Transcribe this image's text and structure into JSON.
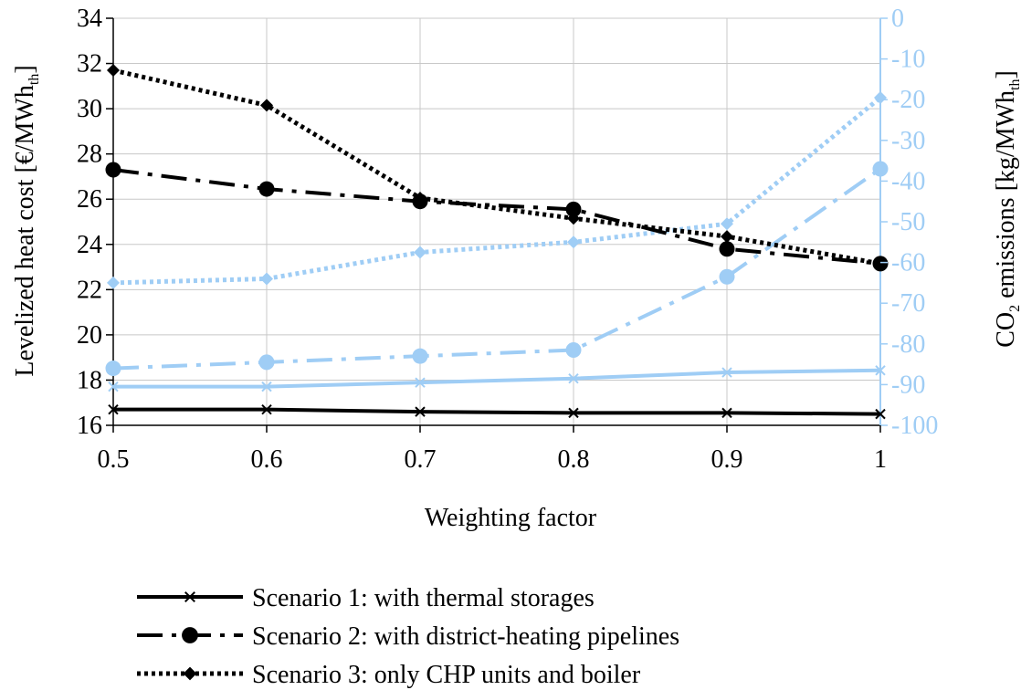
{
  "chart_data": {
    "type": "line",
    "x": [
      0.5,
      0.6,
      0.7,
      0.8,
      0.9,
      1
    ],
    "x_tick_labels": [
      "0.5",
      "0.6",
      "0.7",
      "0.8",
      "0.9",
      "1"
    ],
    "xlabel": "Weighting factor",
    "xlim": [
      0.5,
      1
    ],
    "ylabel_left": {
      "main": "Levelized heat cost [€/MWh",
      "sub": "th",
      "end": "]"
    },
    "ylim_left": [
      16,
      34
    ],
    "y_left_ticks": [
      "16",
      "18",
      "20",
      "22",
      "24",
      "26",
      "28",
      "30",
      "32",
      "34"
    ],
    "ylabel_right": {
      "pre": "CO",
      "sub1": "2",
      "mid": " emissions [kg/MWh",
      "sub2": "th",
      "end": "]"
    },
    "ylim_right": [
      -100,
      0
    ],
    "y_right_ticks": [
      "0",
      "-10",
      "-20",
      "-30",
      "-40",
      "-50",
      "-60",
      "-70",
      "-80",
      "-90",
      "-100"
    ],
    "grid": true,
    "legend_position": "bottom",
    "colors": {
      "cost": "#000000",
      "emissions": "#9fcdf5",
      "grid": "#c8c8c8"
    },
    "series": [
      {
        "name": "Scenario 1: with thermal storages",
        "axis": "left",
        "metric": "cost",
        "marker": "x",
        "dash": "solid",
        "values": [
          16.7,
          16.7,
          16.6,
          16.55,
          16.55,
          16.5
        ]
      },
      {
        "name": "Scenario 2: with district-heating pipelines",
        "axis": "left",
        "metric": "cost",
        "marker": "circle",
        "dash": "dashdot",
        "values": [
          27.3,
          26.45,
          25.9,
          25.55,
          23.8,
          23.15
        ]
      },
      {
        "name": "Scenario 3: only CHP units and boiler",
        "axis": "left",
        "metric": "cost",
        "marker": "diamond",
        "dash": "dotted",
        "values": [
          31.7,
          30.15,
          26.05,
          25.15,
          24.35,
          23.15
        ]
      },
      {
        "axis": "right",
        "metric": "emissions",
        "marker": "x",
        "dash": "solid",
        "values": [
          -90.5,
          -90.5,
          -89.5,
          -88.5,
          -87,
          -86.5
        ]
      },
      {
        "axis": "right",
        "metric": "emissions",
        "marker": "circle",
        "dash": "dashdot",
        "values": [
          -86,
          -84.5,
          -83,
          -81.5,
          -63.5,
          -37
        ]
      },
      {
        "axis": "right",
        "metric": "emissions",
        "marker": "diamond",
        "dash": "dotted",
        "values": [
          -65,
          -64,
          -57.5,
          -55,
          -50.5,
          -19.5
        ]
      }
    ]
  }
}
